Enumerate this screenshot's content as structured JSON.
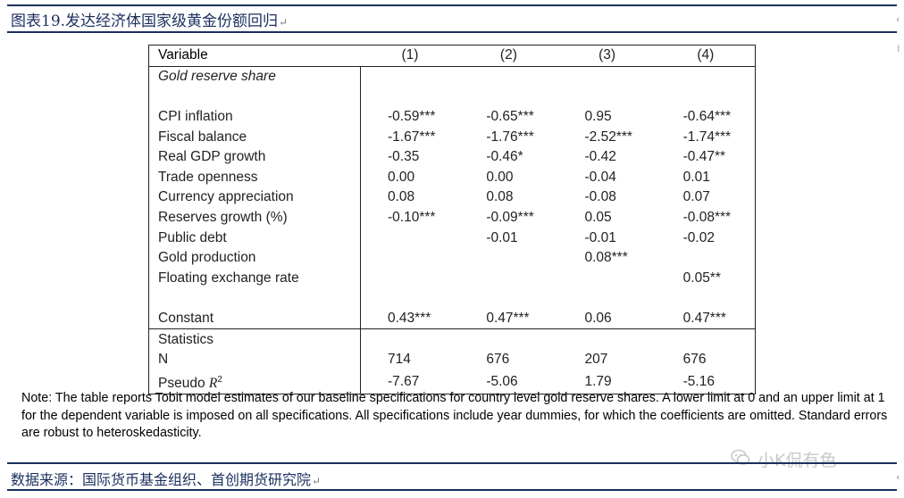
{
  "figure": {
    "title": "图表19.发达经济体国家级黄金份额回归",
    "return_mark": "↵"
  },
  "table": {
    "header": [
      "Variable",
      "(1)",
      "(2)",
      "(3)",
      "(4)"
    ],
    "dependent_label": "Gold reserve share",
    "rows": [
      {
        "label": "CPI inflation",
        "values": [
          "-0.59***",
          "-0.65***",
          "0.95",
          "-0.64***"
        ]
      },
      {
        "label": "Fiscal balance",
        "values": [
          "-1.67***",
          "-1.76***",
          "-2.52***",
          "-1.74***"
        ]
      },
      {
        "label": "Real GDP growth",
        "values": [
          "-0.35",
          "-0.46*",
          "-0.42",
          "-0.47**"
        ]
      },
      {
        "label": "Trade openness",
        "values": [
          "0.00",
          "0.00",
          "-0.04",
          "0.01"
        ]
      },
      {
        "label": "Currency appreciation",
        "values": [
          "0.08",
          "0.08",
          "-0.08",
          "0.07"
        ]
      },
      {
        "label": "Reserves growth (%)",
        "values": [
          "-0.10***",
          "-0.09***",
          "0.05",
          "-0.08***"
        ]
      },
      {
        "label": "Public debt",
        "values": [
          "",
          "-0.01",
          "-0.01",
          "-0.02"
        ]
      },
      {
        "label": "Gold production",
        "values": [
          "",
          "",
          "0.08***",
          ""
        ]
      },
      {
        "label": "Floating exchange rate",
        "values": [
          "",
          "",
          "",
          "0.05**"
        ]
      }
    ],
    "constant": {
      "label": "Constant",
      "values": [
        "0.43***",
        "0.47***",
        "0.06",
        "0.47***"
      ]
    },
    "statistics_label": "Statistics",
    "n": {
      "label": "N",
      "values": [
        "714",
        "676",
        "207",
        "676"
      ]
    },
    "pseudo_r2": {
      "label_prefix": "Pseudo ",
      "label_symbol": "R",
      "label_sup": "2",
      "values": [
        "-7.67",
        "-5.06",
        "1.79",
        "-5.16"
      ]
    }
  },
  "note": "Note: The table reports Tobit model estimates of our baseline specifications for country level gold reserve shares. A lower limit at 0 and an upper limit at 1 for the dependent variable is imposed on all specifications. All specifications include year dummies, for which the coefficients are omitted. Standard errors are robust to heteroskedasticity.",
  "source": "数据来源：国际货币基金组织、首创期货研究院",
  "watermark": {
    "text": "小K侃有色",
    "icon": "wechat-icon"
  },
  "colors": {
    "accent": "#1b2f5e",
    "watermark": "#c8c8c8"
  }
}
